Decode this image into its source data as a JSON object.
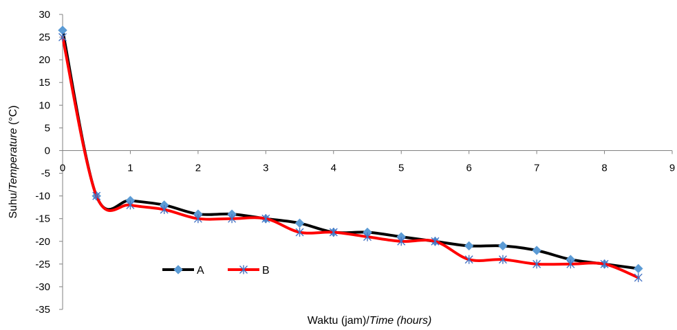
{
  "chart_data": {
    "type": "line",
    "xlabel_plain": "Waktu (jam)/",
    "xlabel_italic": "Time (hours)",
    "ylabel_plain": "Suhu/",
    "ylabel_italic": "Temperature",
    "ylabel_unit": " (°C)",
    "xlim": [
      0,
      9
    ],
    "ylim": [
      -35,
      30
    ],
    "x_ticks": [
      0,
      1,
      2,
      3,
      4,
      5,
      6,
      7,
      8,
      9
    ],
    "y_ticks": [
      30,
      25,
      20,
      15,
      10,
      5,
      0,
      -5,
      -10,
      -15,
      -20,
      -25,
      -30,
      -35
    ],
    "grid": false,
    "legend_position": "bottom-left",
    "x": [
      0,
      0.5,
      1,
      1.5,
      2,
      2.5,
      3,
      3.5,
      4,
      4.5,
      5,
      5.5,
      6,
      6.5,
      7,
      7.5,
      8,
      8.5
    ],
    "series": [
      {
        "name": "A",
        "values": [
          26.5,
          -10,
          -11,
          -12,
          -14,
          -14,
          -15,
          -16,
          -18,
          -18,
          -19,
          -20,
          -21,
          -21,
          -22,
          -24,
          -25,
          -26
        ],
        "line_color": "#000000",
        "marker": "diamond",
        "marker_color": "#5B9BD5"
      },
      {
        "name": "B",
        "values": [
          25,
          -10,
          -12,
          -13,
          -15,
          -15,
          -15,
          -18,
          -18,
          -19,
          -20,
          -20,
          -24,
          -24,
          -25,
          -25,
          -25,
          -28
        ],
        "line_color": "#FF0000",
        "marker": "star",
        "marker_color": "#4472C4"
      }
    ]
  }
}
